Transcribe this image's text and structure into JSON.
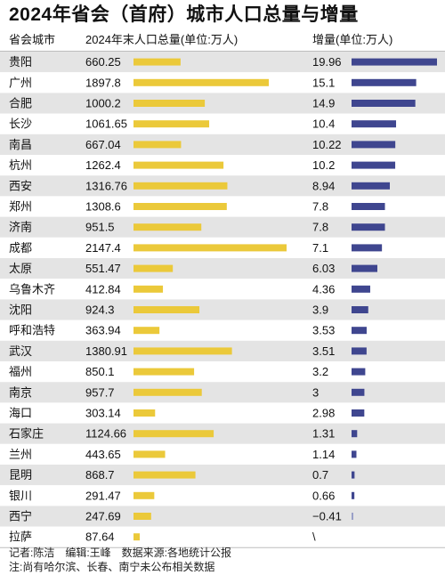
{
  "title": "2024年省会（首府）城市人口总量与增量",
  "headers": {
    "city": "省会城市",
    "population": "2024年末人口总量(单位:万人)",
    "increase": "增量(单位:万人)"
  },
  "chart_data": {
    "type": "bar",
    "title": "2024年省会（首府）城市人口总量与增量",
    "categories": [
      "贵阳",
      "广州",
      "合肥",
      "长沙",
      "南昌",
      "杭州",
      "西安",
      "郑州",
      "济南",
      "成都",
      "太原",
      "乌鲁木齐",
      "沈阳",
      "呼和浩特",
      "武汉",
      "福州",
      "南京",
      "海口",
      "石家庄",
      "兰州",
      "昆明",
      "银川",
      "西宁",
      "拉萨"
    ],
    "series": [
      {
        "name": "2024年末人口总量(单位:万人)",
        "values": [
          660.25,
          1897.8,
          1000.2,
          1061.65,
          667.04,
          1262.4,
          1316.76,
          1308.6,
          951.5,
          2147.4,
          551.47,
          412.84,
          924.3,
          363.94,
          1380.91,
          850.1,
          957.7,
          303.14,
          1124.66,
          443.65,
          868.7,
          291.47,
          247.69,
          87.64
        ],
        "labels": [
          "660.25",
          "1897.8",
          "1000.2",
          "1061.65",
          "667.04",
          "1262.4",
          "1316.76",
          "1308.6",
          "951.5",
          "2147.4",
          "551.47",
          "412.84",
          "924.3",
          "363.94",
          "1380.91",
          "850.1",
          "957.7",
          "303.14",
          "1124.66",
          "443.65",
          "868.7",
          "291.47",
          "247.69",
          "87.64"
        ],
        "color": "#EBC93A"
      },
      {
        "name": "增量(单位:万人)",
        "values": [
          19.96,
          15.1,
          14.9,
          10.4,
          10.22,
          10.2,
          8.94,
          7.8,
          7.8,
          7.1,
          6.03,
          4.36,
          3.9,
          3.53,
          3.51,
          3.2,
          3,
          2.98,
          1.31,
          1.14,
          0.7,
          0.66,
          -0.41,
          null
        ],
        "labels": [
          "19.96",
          "15.1",
          "14.9",
          "10.4",
          "10.22",
          "10.2",
          "8.94",
          "7.8",
          "7.8",
          "7.1",
          "6.03",
          "4.36",
          "3.9",
          "3.53",
          "3.51",
          "3.2",
          "3",
          "2.98",
          "1.31",
          "1.14",
          "0.7",
          "0.66",
          "−0.41",
          "\\"
        ],
        "color": "#3F468F"
      }
    ],
    "row_colors": [
      "#e4e4e4",
      "#ffffff"
    ]
  },
  "footer": {
    "line1": "记者:陈洁　编辑:王峰　数据来源:各地统计公报",
    "line2": "注:尚有哈尔滨、长春、南宁未公布相关数据"
  }
}
